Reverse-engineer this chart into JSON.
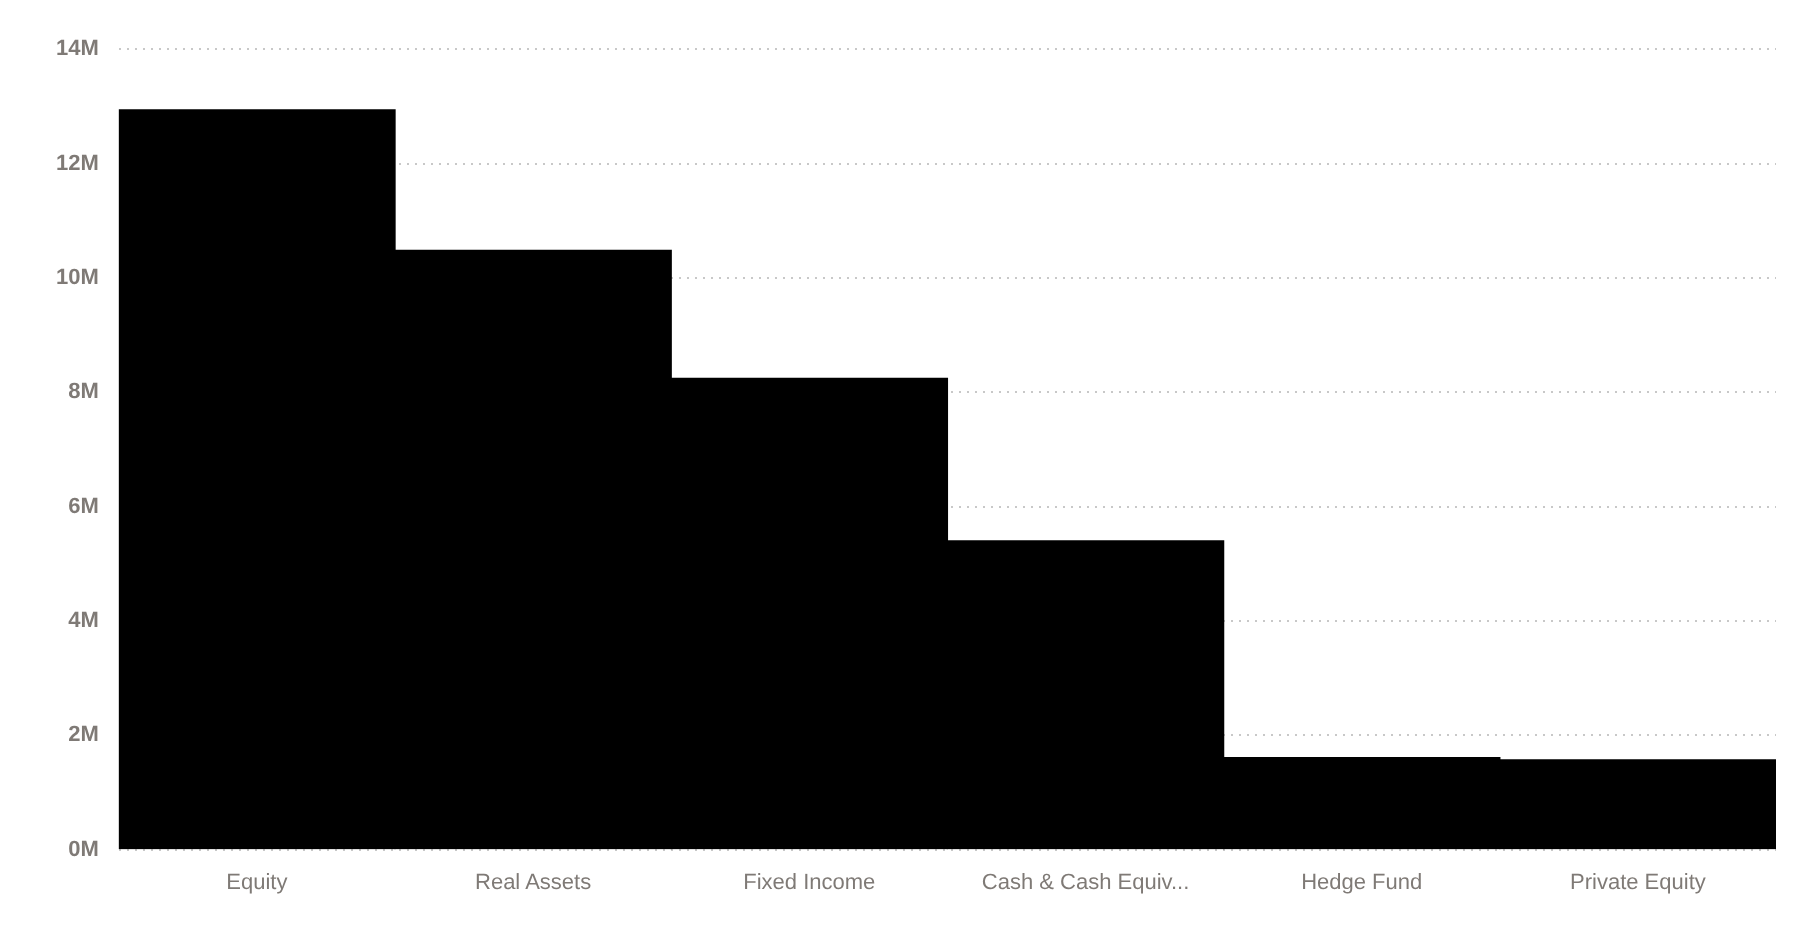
{
  "chart_data": {
    "type": "bar",
    "categories": [
      "Equity",
      "Real Assets",
      "Fixed Income",
      "Cash & Cash Equiv...",
      "Hedge Fund",
      "Private Equity"
    ],
    "values": [
      12.94,
      10.48,
      8.24,
      5.4,
      1.61,
      1.57
    ],
    "color": "#000000",
    "ylim": [
      0,
      14
    ],
    "yticks": [
      {
        "value": 0,
        "label": "0M"
      },
      {
        "value": 2,
        "label": "2M"
      },
      {
        "value": 4,
        "label": "4M"
      },
      {
        "value": 6,
        "label": "6M"
      },
      {
        "value": 8,
        "label": "8M"
      },
      {
        "value": 10,
        "label": "10M"
      },
      {
        "value": 12,
        "label": "12M"
      },
      {
        "value": 14,
        "label": "14M"
      }
    ],
    "grid": "y",
    "legend": false
  }
}
